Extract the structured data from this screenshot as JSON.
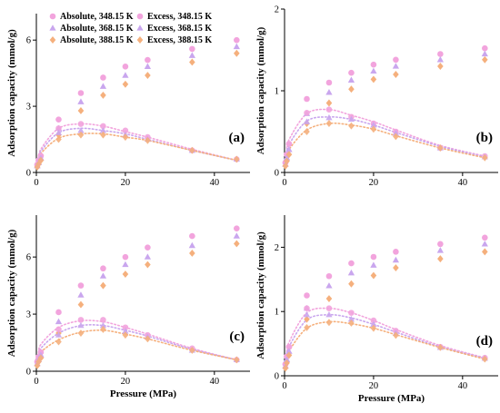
{
  "legend": {
    "entries": [
      {
        "label": "Absolute, 348.15 K",
        "marker": "circle",
        "color": "#f2a4dd"
      },
      {
        "label": "Absolute, 368.15 K",
        "marker": "triangle",
        "color": "#c9a6ee"
      },
      {
        "label": "Absolute, 388.15 K",
        "marker": "diamond",
        "color": "#f5b07d"
      },
      {
        "label": "Excess, 348.15 K",
        "marker": "circle",
        "color": "#f2a4dd"
      },
      {
        "label": "Excess, 368.15 K",
        "marker": "triangle",
        "color": "#c9a6ee"
      },
      {
        "label": "Excess, 388.15 K",
        "marker": "diamond",
        "color": "#f5b07d"
      }
    ]
  },
  "chart_data": [
    {
      "type": "scatter",
      "panel": "(a)",
      "xlabel": "",
      "ylabel": "Adsorption capacity (mmol/g)",
      "xlim": [
        0,
        48
      ],
      "ylim": [
        0,
        7.2
      ],
      "xticks": [
        0,
        20,
        40
      ],
      "yticks": [
        0,
        3,
        6
      ],
      "x": [
        0.2,
        0.5,
        1,
        5,
        10,
        15,
        20,
        25,
        35,
        45
      ],
      "series": [
        {
          "name": "Absolute, 348.15 K",
          "kind": "absolute",
          "values": [
            0.35,
            0.55,
            0.75,
            2.4,
            3.6,
            4.3,
            4.8,
            5.1,
            5.6,
            6.0
          ]
        },
        {
          "name": "Absolute, 368.15 K",
          "kind": "absolute",
          "values": [
            0.3,
            0.45,
            0.65,
            2.0,
            3.2,
            3.9,
            4.4,
            4.8,
            5.3,
            5.7
          ]
        },
        {
          "name": "Absolute, 388.15 K",
          "kind": "absolute",
          "values": [
            0.25,
            0.38,
            0.55,
            1.7,
            2.8,
            3.5,
            4.0,
            4.4,
            5.0,
            5.4
          ]
        },
        {
          "name": "Excess, 348.15 K",
          "kind": "excess",
          "values": [
            0.35,
            0.55,
            0.75,
            2.0,
            2.2,
            2.1,
            1.9,
            1.6,
            1.0,
            0.6
          ]
        },
        {
          "name": "Excess, 368.15 K",
          "kind": "excess",
          "values": [
            0.3,
            0.45,
            0.65,
            1.8,
            1.9,
            1.9,
            1.7,
            1.5,
            1.0,
            0.6
          ]
        },
        {
          "name": "Excess, 388.15 K",
          "kind": "excess",
          "values": [
            0.25,
            0.38,
            0.55,
            1.5,
            1.7,
            1.7,
            1.6,
            1.45,
            1.0,
            0.6
          ]
        }
      ],
      "fits": [
        {
          "name": "Excess, 348.15 K",
          "values": [
            0.3,
            0.55,
            1.05,
            2.0,
            2.2,
            2.1,
            1.85,
            1.6,
            1.05,
            0.55
          ]
        },
        {
          "name": "Excess, 368.15 K",
          "values": [
            0.25,
            0.5,
            0.95,
            1.8,
            2.0,
            1.9,
            1.75,
            1.5,
            1.0,
            0.55
          ]
        },
        {
          "name": "Excess, 388.15 K",
          "values": [
            0.2,
            0.42,
            0.85,
            1.55,
            1.75,
            1.75,
            1.6,
            1.45,
            1.0,
            0.55
          ]
        }
      ]
    },
    {
      "type": "scatter",
      "panel": "(b)",
      "xlabel": "",
      "ylabel": "Adsorption capacity (mmol/g)",
      "xlim": [
        0,
        48
      ],
      "ylim": [
        0,
        2.0
      ],
      "xticks": [
        0,
        20,
        40
      ],
      "yticks": [
        0,
        1,
        2
      ],
      "x": [
        0.2,
        0.5,
        1,
        5,
        10,
        15,
        20,
        25,
        35,
        45
      ],
      "series": [
        {
          "name": "Absolute, 348.15 K",
          "kind": "absolute",
          "values": [
            0.12,
            0.22,
            0.35,
            0.9,
            1.1,
            1.22,
            1.32,
            1.38,
            1.45,
            1.52
          ]
        },
        {
          "name": "Absolute, 368.15 K",
          "kind": "absolute",
          "values": [
            0.1,
            0.18,
            0.28,
            0.72,
            0.98,
            1.13,
            1.24,
            1.3,
            1.38,
            1.45
          ]
        },
        {
          "name": "Absolute, 388.15 K",
          "kind": "absolute",
          "values": [
            0.08,
            0.14,
            0.22,
            0.6,
            0.85,
            1.02,
            1.14,
            1.2,
            1.3,
            1.38
          ]
        },
        {
          "name": "Excess, 348.15 K",
          "kind": "excess",
          "values": [
            0.12,
            0.22,
            0.35,
            0.73,
            0.77,
            0.68,
            0.6,
            0.5,
            0.3,
            0.2
          ]
        },
        {
          "name": "Excess, 368.15 K",
          "kind": "excess",
          "values": [
            0.1,
            0.18,
            0.28,
            0.62,
            0.67,
            0.65,
            0.58,
            0.48,
            0.3,
            0.19
          ]
        },
        {
          "name": "Excess, 388.15 K",
          "kind": "excess",
          "values": [
            0.08,
            0.14,
            0.22,
            0.5,
            0.6,
            0.57,
            0.53,
            0.44,
            0.3,
            0.18
          ]
        }
      ],
      "fits": [
        {
          "name": "Excess, 348.15 K",
          "values": [
            0.12,
            0.25,
            0.4,
            0.72,
            0.77,
            0.7,
            0.62,
            0.52,
            0.33,
            0.2
          ]
        },
        {
          "name": "Excess, 368.15 K",
          "values": [
            0.1,
            0.2,
            0.34,
            0.63,
            0.68,
            0.65,
            0.58,
            0.49,
            0.32,
            0.19
          ]
        },
        {
          "name": "Excess, 388.15 K",
          "values": [
            0.08,
            0.16,
            0.28,
            0.52,
            0.6,
            0.58,
            0.53,
            0.45,
            0.3,
            0.18
          ]
        }
      ]
    },
    {
      "type": "scatter",
      "panel": "(c)",
      "xlabel": "Pressure (MPa)",
      "ylabel": "Adsorption capacity (mmol/g)",
      "xlim": [
        0,
        48
      ],
      "ylim": [
        0,
        8.2
      ],
      "xticks": [
        0,
        20,
        40
      ],
      "yticks": [
        0,
        3,
        6
      ],
      "x": [
        0.2,
        0.5,
        1,
        5,
        10,
        15,
        20,
        25,
        35,
        45
      ],
      "series": [
        {
          "name": "Absolute, 348.15 K",
          "kind": "absolute",
          "values": [
            0.5,
            0.75,
            1.0,
            3.1,
            4.5,
            5.4,
            6.0,
            6.5,
            7.1,
            7.5
          ]
        },
        {
          "name": "Absolute, 368.15 K",
          "kind": "absolute",
          "values": [
            0.4,
            0.6,
            0.85,
            2.6,
            4.0,
            5.0,
            5.6,
            6.0,
            6.6,
            7.1
          ]
        },
        {
          "name": "Absolute, 388.15 K",
          "kind": "absolute",
          "values": [
            0.3,
            0.5,
            0.7,
            2.0,
            3.5,
            4.5,
            5.1,
            5.6,
            6.2,
            6.7
          ]
        },
        {
          "name": "Excess, 348.15 K",
          "kind": "excess",
          "values": [
            0.5,
            0.75,
            1.0,
            2.2,
            2.7,
            2.7,
            2.3,
            1.9,
            1.2,
            0.6
          ]
        },
        {
          "name": "Excess, 368.15 K",
          "kind": "excess",
          "values": [
            0.4,
            0.6,
            0.85,
            1.9,
            2.4,
            2.4,
            2.1,
            1.8,
            1.1,
            0.6
          ]
        },
        {
          "name": "Excess, 388.15 K",
          "kind": "excess",
          "values": [
            0.3,
            0.5,
            0.7,
            1.55,
            2.0,
            2.2,
            1.9,
            1.7,
            1.1,
            0.6
          ]
        }
      ],
      "fits": [
        {
          "name": "Excess, 348.15 K",
          "values": [
            0.4,
            0.8,
            1.4,
            2.3,
            2.65,
            2.6,
            2.3,
            1.95,
            1.2,
            0.6
          ]
        },
        {
          "name": "Excess, 368.15 K",
          "values": [
            0.35,
            0.7,
            1.2,
            2.0,
            2.4,
            2.4,
            2.15,
            1.85,
            1.15,
            0.6
          ]
        },
        {
          "name": "Excess, 388.15 K",
          "values": [
            0.28,
            0.55,
            1.0,
            1.65,
            2.05,
            2.15,
            1.95,
            1.7,
            1.1,
            0.6
          ]
        }
      ]
    },
    {
      "type": "scatter",
      "panel": "(d)",
      "xlabel": "Pressure (MPa)",
      "ylabel": "Adsorption capacity (mmol/g)",
      "xlim": [
        0,
        48
      ],
      "ylim": [
        0,
        2.5
      ],
      "xticks": [
        0,
        20,
        40
      ],
      "yticks": [
        0,
        1,
        2
      ],
      "x": [
        0.2,
        0.5,
        1,
        5,
        10,
        15,
        20,
        25,
        35,
        45
      ],
      "series": [
        {
          "name": "Absolute, 348.15 K",
          "kind": "absolute",
          "values": [
            0.18,
            0.3,
            0.45,
            1.25,
            1.55,
            1.75,
            1.85,
            1.93,
            2.05,
            2.15
          ]
        },
        {
          "name": "Absolute, 368.15 K",
          "kind": "absolute",
          "values": [
            0.15,
            0.25,
            0.38,
            1.05,
            1.4,
            1.6,
            1.72,
            1.8,
            1.95,
            2.05
          ]
        },
        {
          "name": "Absolute, 388.15 K",
          "kind": "absolute",
          "values": [
            0.12,
            0.2,
            0.32,
            0.88,
            1.2,
            1.43,
            1.56,
            1.68,
            1.82,
            1.93
          ]
        },
        {
          "name": "Excess, 348.15 K",
          "kind": "excess",
          "values": [
            0.18,
            0.3,
            0.45,
            1.05,
            1.05,
            0.98,
            0.86,
            0.7,
            0.45,
            0.28
          ]
        },
        {
          "name": "Excess, 368.15 K",
          "kind": "excess",
          "values": [
            0.15,
            0.25,
            0.38,
            0.95,
            0.95,
            0.88,
            0.8,
            0.66,
            0.44,
            0.27
          ]
        },
        {
          "name": "Excess, 388.15 K",
          "kind": "excess",
          "values": [
            0.12,
            0.2,
            0.32,
            0.75,
            0.83,
            0.82,
            0.74,
            0.63,
            0.44,
            0.26
          ]
        }
      ],
      "fits": [
        {
          "name": "Excess, 348.15 K",
          "values": [
            0.15,
            0.3,
            0.52,
            0.98,
            1.05,
            0.98,
            0.86,
            0.72,
            0.47,
            0.28
          ]
        },
        {
          "name": "Excess, 368.15 K",
          "values": [
            0.12,
            0.26,
            0.45,
            0.87,
            0.95,
            0.9,
            0.8,
            0.68,
            0.45,
            0.27
          ]
        },
        {
          "name": "Excess, 388.15 K",
          "values": [
            0.1,
            0.21,
            0.38,
            0.74,
            0.84,
            0.81,
            0.74,
            0.64,
            0.44,
            0.26
          ]
        }
      ]
    }
  ]
}
